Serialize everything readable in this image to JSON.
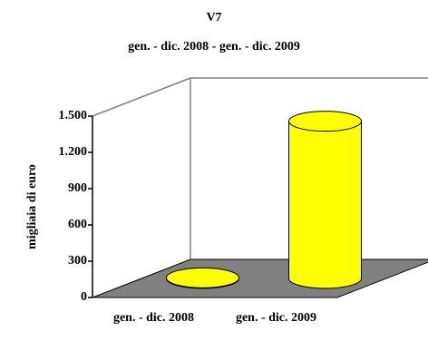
{
  "chart_data": {
    "type": "bar",
    "title": "V7",
    "subtitle": "gen. - dic. 2008 - gen. - dic. 2009",
    "y_label": "migliaia di euro",
    "categories": [
      "gen. - dic. 2008",
      "gen. - dic. 2009"
    ],
    "values": [
      5,
      1300
    ],
    "color": "#ffff00",
    "ylim": [
      0,
      1500
    ],
    "yticks": [
      0,
      300,
      600,
      900,
      {
        "value": 1200,
        "label": "1.200"
      },
      {
        "value": 1500,
        "label": "1.500"
      }
    ]
  }
}
